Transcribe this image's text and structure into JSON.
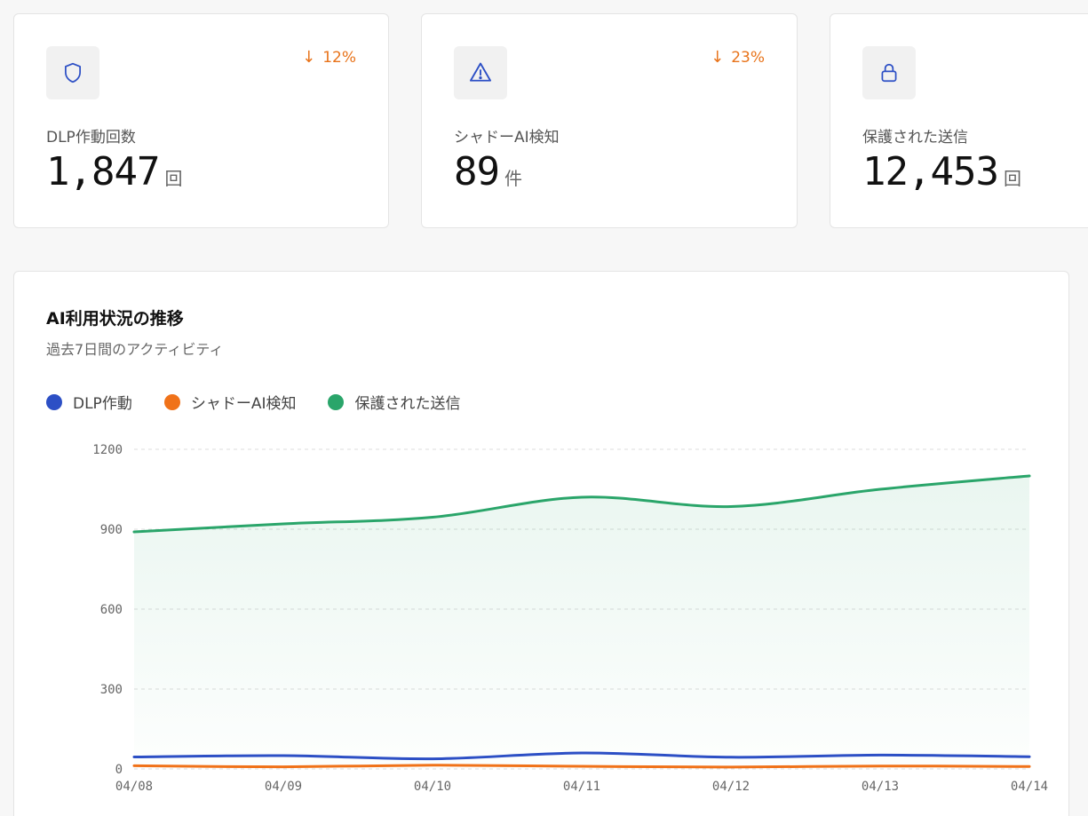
{
  "stats": [
    {
      "label": "DLP作動回数",
      "value": "1,847",
      "unit": "回",
      "trend": "12%",
      "icon": "shield-icon"
    },
    {
      "label": "シャドーAI検知",
      "value": "89",
      "unit": "件",
      "trend": "23%",
      "icon": "warning-icon"
    },
    {
      "label": "保護された送信",
      "value": "12,453",
      "unit": "回",
      "trend": "",
      "icon": "lock-icon"
    }
  ],
  "colors": {
    "accent_blue": "#2c4fc5",
    "orange": "#f07219",
    "green": "#2aa56a",
    "trend_orange": "#e8731a"
  },
  "chart": {
    "title": "AI利用状況の推移",
    "subtitle": "過去7日間のアクティビティ",
    "legend": [
      {
        "label": "DLP作動"
      },
      {
        "label": "シャドーAI検知"
      },
      {
        "label": "保護された送信"
      }
    ]
  },
  "chart_data": {
    "type": "area",
    "x": [
      "04/08",
      "04/09",
      "04/10",
      "04/11",
      "04/12",
      "04/13",
      "04/14"
    ],
    "y_ticks": [
      "0",
      "300",
      "600",
      "900",
      "1200"
    ],
    "ylim": [
      0,
      1200
    ],
    "grid": true,
    "legend_position": "top-left",
    "series": [
      {
        "name": "DLP作動",
        "color": "#2c4fc5",
        "values": [
          45,
          50,
          38,
          60,
          44,
          52,
          46
        ]
      },
      {
        "name": "シャドーAI検知",
        "color": "#f07219",
        "values": [
          12,
          8,
          14,
          10,
          7,
          11,
          9
        ]
      },
      {
        "name": "保護された送信",
        "color": "#2aa56a",
        "values": [
          890,
          920,
          945,
          1020,
          985,
          1050,
          1100
        ],
        "filled": true
      }
    ]
  }
}
